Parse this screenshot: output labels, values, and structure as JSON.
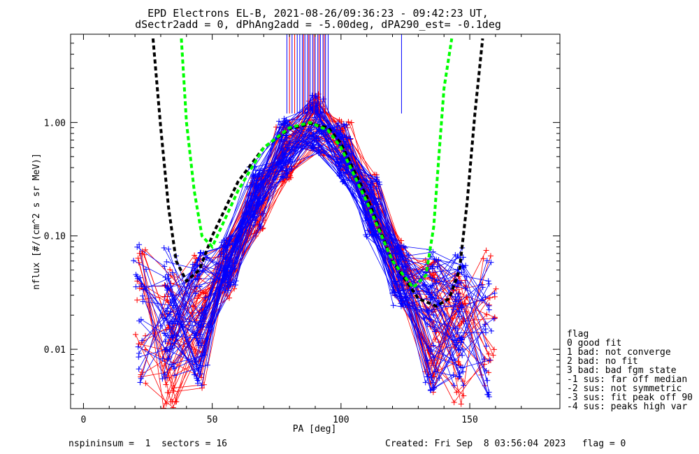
{
  "title_lines": [
    "EPD Electrons EL-B, 2021-08-26/09:36:23 - 09:42:23 UT,",
    "dSectr2add = 0, dPhAng2add = -5.00deg, dPA290_est=  -0.1deg"
  ],
  "footer": {
    "left": "nspininsum =  1  sectors = 16",
    "right": "Created: Fri Sep  8 03:56:04 2023   flag = 0"
  },
  "flag_legend": {
    "title": "flag",
    "items": [
      " 0 good fit",
      " 1 bad: not converge",
      " 2 bad: no fit",
      " 3 bad: bad fgm state",
      "-1 sus: far off median",
      "-2 sus: not symmetric",
      "-3 sus: fit peak off 90",
      "-4 sus: peaks high var"
    ]
  },
  "chart_data": {
    "type": "line",
    "xlabel": "PA [deg]",
    "ylabel": "nflux [#/(cm^2 s sr MeV)]",
    "xlim": [
      -5,
      185
    ],
    "ylim": [
      0.003,
      6
    ],
    "y_scale": "log",
    "x_ticks": [
      0,
      50,
      100,
      150
    ],
    "y_ticks": [
      0.01,
      0.1,
      1.0
    ],
    "y_tick_labels": [
      "0.01",
      "0.10",
      "1.00"
    ],
    "colors": {
      "red": "#ff0000",
      "blue": "#0000ff",
      "green": "#00ff00",
      "black": "#000000"
    },
    "pa_bins": [
      22,
      33,
      45,
      56,
      67,
      78,
      90,
      101,
      112,
      123,
      135,
      146,
      157
    ],
    "median_red": [
      0.02,
      0.012,
      0.018,
      0.05,
      0.18,
      0.55,
      0.95,
      0.6,
      0.2,
      0.05,
      0.015,
      0.012,
      0.02
    ],
    "median_blue": [
      0.02,
      0.02,
      0.02,
      0.06,
      0.22,
      0.6,
      0.92,
      0.55,
      0.18,
      0.045,
      0.018,
      0.02,
      0.015
    ],
    "fit_black": {
      "x": [
        27,
        30,
        33,
        36,
        40,
        45,
        50,
        60,
        70,
        80,
        88,
        95,
        100,
        110,
        120,
        130,
        137,
        142,
        146,
        149,
        152,
        155
      ],
      "y": [
        5.5,
        0.9,
        0.18,
        0.06,
        0.04,
        0.05,
        0.1,
        0.3,
        0.6,
        0.88,
        0.98,
        0.9,
        0.65,
        0.22,
        0.06,
        0.028,
        0.024,
        0.028,
        0.05,
        0.2,
        1.2,
        5.5
      ]
    },
    "fit_green": {
      "x": [
        38,
        40,
        43,
        46,
        50,
        60,
        70,
        80,
        88,
        95,
        100,
        110,
        120,
        128,
        133,
        136,
        138,
        140,
        143
      ],
      "y": [
        5.5,
        1.0,
        0.25,
        0.1,
        0.08,
        0.25,
        0.6,
        0.9,
        1.0,
        0.85,
        0.6,
        0.2,
        0.06,
        0.035,
        0.045,
        0.12,
        0.5,
        2.0,
        5.5
      ]
    },
    "peak_markers": {
      "blue_x": [
        79,
        81,
        83,
        84,
        85,
        86,
        87,
        88,
        89,
        90,
        91,
        92,
        93,
        94,
        95,
        123.5
      ],
      "red_x": [
        80,
        82,
        85.5,
        87.5,
        89.5,
        91.5,
        93.5
      ]
    }
  }
}
